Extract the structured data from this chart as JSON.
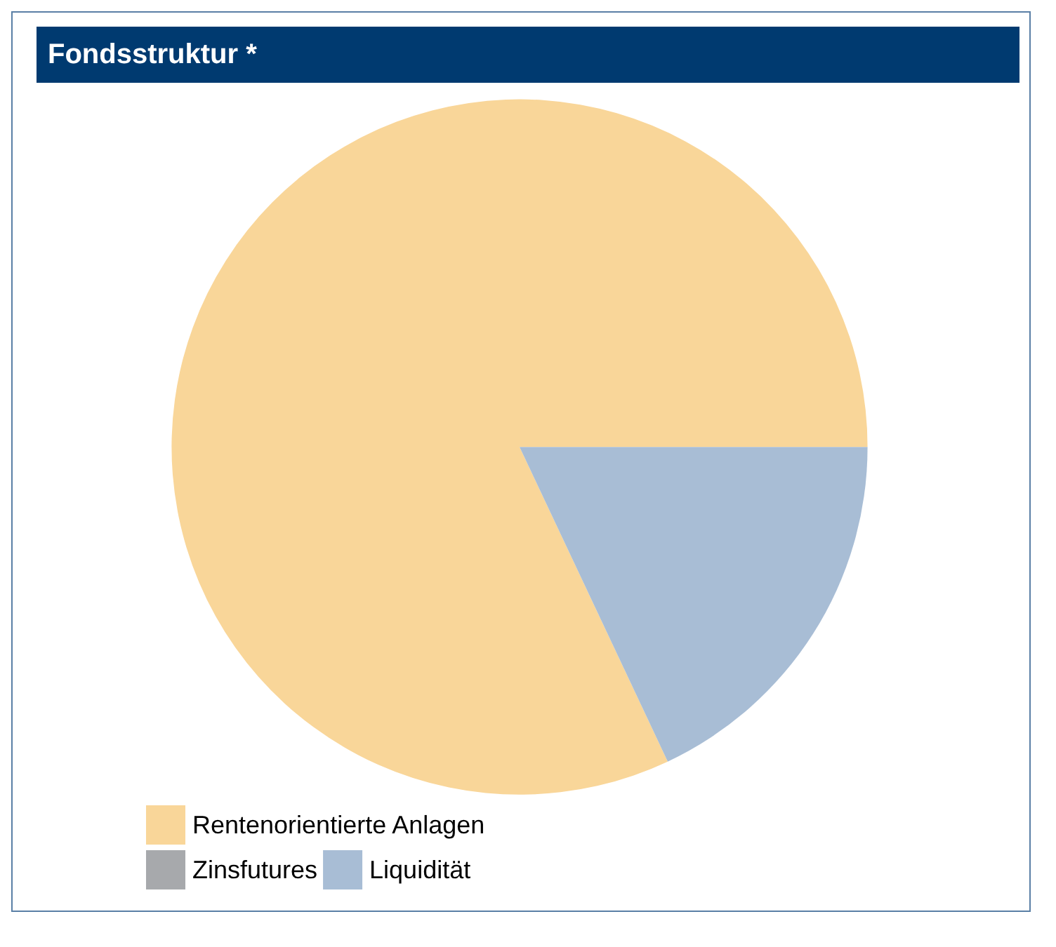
{
  "chart_data": {
    "type": "pie",
    "title": "Fondsstruktur *",
    "categories": [
      "Rentenorientierte Anlagen",
      "Zinsfutures",
      "Liquidität"
    ],
    "values": [
      82,
      0,
      18
    ],
    "colors": [
      "#f9d699",
      "#a7a9ac",
      "#a8bdd5"
    ],
    "legend": "bottom left"
  }
}
